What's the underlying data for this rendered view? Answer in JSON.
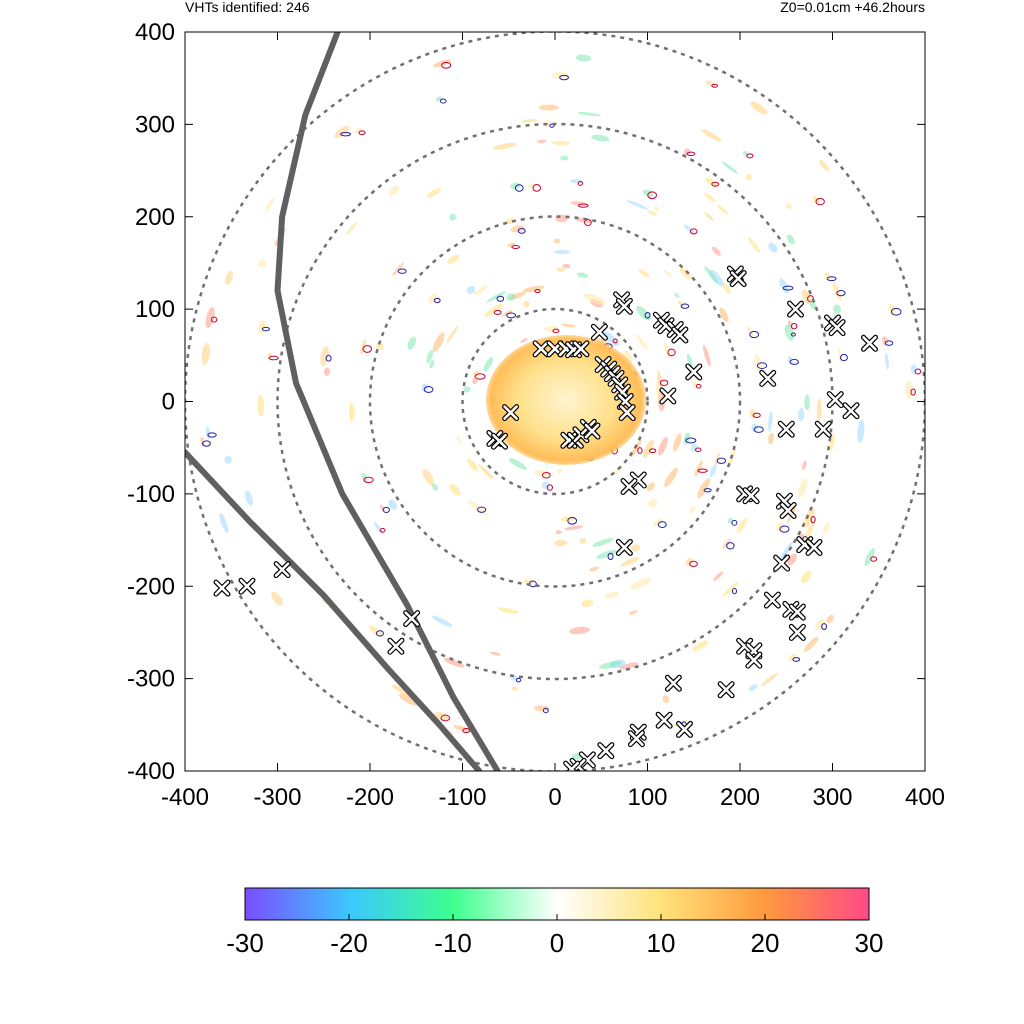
{
  "header": {
    "left_text": "VHTs identified: 246",
    "right_text": "Z0=0.01cm  +46.2hours"
  },
  "colors": {
    "ring": "#707070",
    "track": "#606060",
    "contour_red": "#cc0033",
    "contour_blue": "#2222aa",
    "marker_stroke": "#000000",
    "marker_fill": "#ffffff"
  },
  "chart_data": {
    "type": "scatter",
    "title": "",
    "xlabel": "",
    "ylabel": "",
    "xlim": [
      -400,
      400
    ],
    "ylim": [
      -400,
      400
    ],
    "x_ticks": [
      -400,
      -300,
      -200,
      -100,
      0,
      100,
      200,
      300,
      400
    ],
    "y_ticks": [
      -400,
      -300,
      -200,
      -100,
      0,
      100,
      200,
      300,
      400
    ],
    "x_tick_labels": [
      "-400",
      "-300",
      "-200",
      "-100",
      "0",
      "100",
      "200",
      "300",
      "400"
    ],
    "y_tick_labels": [
      "-400",
      "-300",
      "-200",
      "-100",
      "0",
      "100",
      "200",
      "300",
      "400"
    ],
    "grid": false,
    "range_rings": [
      100,
      200,
      300,
      400
    ],
    "tracks": [
      [
        [
          -235,
          400
        ],
        [
          -270,
          310
        ],
        [
          -295,
          200
        ],
        [
          -300,
          120
        ],
        [
          -280,
          20
        ],
        [
          -230,
          -100
        ],
        [
          -160,
          -220
        ],
        [
          -110,
          -320
        ],
        [
          -62,
          -400
        ]
      ],
      [
        [
          -400,
          -55
        ],
        [
          -330,
          -130
        ],
        [
          -250,
          -210
        ],
        [
          -180,
          -290
        ],
        [
          -125,
          -350
        ],
        [
          -82,
          -400
        ]
      ]
    ],
    "vht_markers": [
      [
        -360,
        -202
      ],
      [
        -333,
        -200
      ],
      [
        -295,
        -182
      ],
      [
        -172,
        -265
      ],
      [
        -155,
        -235
      ],
      [
        -65,
        -40
      ],
      [
        -60,
        -43
      ],
      [
        -48,
        -12
      ],
      [
        -15,
        57
      ],
      [
        0,
        57
      ],
      [
        12,
        57
      ],
      [
        20,
        56
      ],
      [
        28,
        57
      ],
      [
        48,
        75
      ],
      [
        52,
        40
      ],
      [
        58,
        35
      ],
      [
        62,
        30
      ],
      [
        66,
        25
      ],
      [
        70,
        18
      ],
      [
        73,
        10
      ],
      [
        76,
        0
      ],
      [
        78,
        -12
      ],
      [
        15,
        -42
      ],
      [
        22,
        -42
      ],
      [
        28,
        -36
      ],
      [
        36,
        -28
      ],
      [
        40,
        -32
      ],
      [
        72,
        110
      ],
      [
        75,
        103
      ],
      [
        115,
        88
      ],
      [
        120,
        82
      ],
      [
        130,
        78
      ],
      [
        135,
        72
      ],
      [
        150,
        32
      ],
      [
        122,
        6
      ],
      [
        90,
        -85
      ],
      [
        80,
        -92
      ],
      [
        75,
        -158
      ],
      [
        195,
        138
      ],
      [
        198,
        133
      ],
      [
        230,
        25
      ],
      [
        260,
        100
      ],
      [
        300,
        85
      ],
      [
        305,
        80
      ],
      [
        340,
        63
      ],
      [
        303,
        2
      ],
      [
        320,
        -10
      ],
      [
        290,
        -30
      ],
      [
        250,
        -30
      ],
      [
        205,
        -100
      ],
      [
        212,
        -102
      ],
      [
        248,
        -108
      ],
      [
        252,
        -118
      ],
      [
        270,
        -155
      ],
      [
        280,
        -158
      ],
      [
        245,
        -175
      ],
      [
        235,
        -215
      ],
      [
        255,
        -225
      ],
      [
        262,
        -228
      ],
      [
        262,
        -250
      ],
      [
        205,
        -265
      ],
      [
        215,
        -270
      ],
      [
        215,
        -280
      ],
      [
        128,
        -305
      ],
      [
        185,
        -312
      ],
      [
        118,
        -345
      ],
      [
        90,
        -358
      ],
      [
        88,
        -365
      ],
      [
        140,
        -355
      ],
      [
        55,
        -378
      ],
      [
        35,
        -388
      ],
      [
        25,
        -395
      ],
      [
        18,
        -398
      ]
    ],
    "colorbar": {
      "min": -30,
      "max": 30,
      "ticks": [
        -30,
        -20,
        -10,
        0,
        10,
        20,
        30
      ],
      "tick_labels": [
        "-30",
        "-20",
        "-10",
        "0",
        "10",
        "20",
        "30"
      ],
      "colors": [
        "#7a4dff",
        "#3cc7ff",
        "#3dff8f",
        "#ffffff",
        "#ffe27a",
        "#ff9a3d",
        "#ff4a86"
      ]
    }
  }
}
